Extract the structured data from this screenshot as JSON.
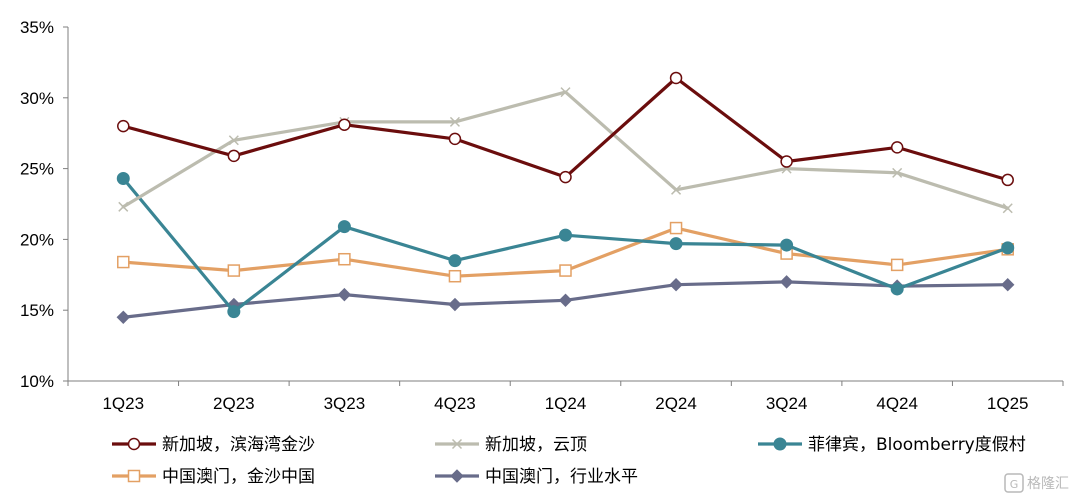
{
  "chart_data": {
    "type": "line",
    "title": "",
    "xlabel": "",
    "ylabel": "",
    "categories": [
      "1Q23",
      "2Q23",
      "3Q23",
      "4Q23",
      "1Q24",
      "2Q24",
      "3Q24",
      "4Q24",
      "1Q25"
    ],
    "ylim": [
      10,
      35
    ],
    "y_ticks": [
      10,
      15,
      20,
      25,
      30,
      35
    ],
    "y_tick_labels": [
      "10%",
      "15%",
      "20%",
      "25%",
      "30%",
      "35%"
    ],
    "grid": false,
    "legend_position": "bottom",
    "series": [
      {
        "name": "新加坡，滨海湾金沙",
        "color": "#6b0d0d",
        "marker": "open-circle",
        "values": [
          28.0,
          25.9,
          28.1,
          27.1,
          24.4,
          31.4,
          25.5,
          26.5,
          24.2
        ]
      },
      {
        "name": "新加坡，云顶",
        "color": "#bcbcaf",
        "marker": "x",
        "values": [
          22.3,
          27.0,
          28.3,
          28.3,
          30.4,
          23.5,
          25.0,
          24.7,
          22.2
        ]
      },
      {
        "name": "菲律宾，Bloomberry度假村",
        "color": "#3a8594",
        "marker": "filled-circle",
        "values": [
          24.3,
          14.9,
          20.9,
          18.5,
          20.3,
          19.7,
          19.6,
          16.5,
          19.4
        ]
      },
      {
        "name": "中国澳门，金沙中国",
        "color": "#e3a064",
        "marker": "open-square",
        "values": [
          18.4,
          17.8,
          18.6,
          17.4,
          17.8,
          20.8,
          19.0,
          18.2,
          19.3
        ]
      },
      {
        "name": "中国澳门，行业水平",
        "color": "#686c8a",
        "marker": "diamond",
        "values": [
          14.5,
          15.4,
          16.1,
          15.4,
          15.7,
          16.8,
          17.0,
          16.7,
          16.8
        ]
      }
    ]
  },
  "watermark": {
    "text": "格隆汇"
  }
}
